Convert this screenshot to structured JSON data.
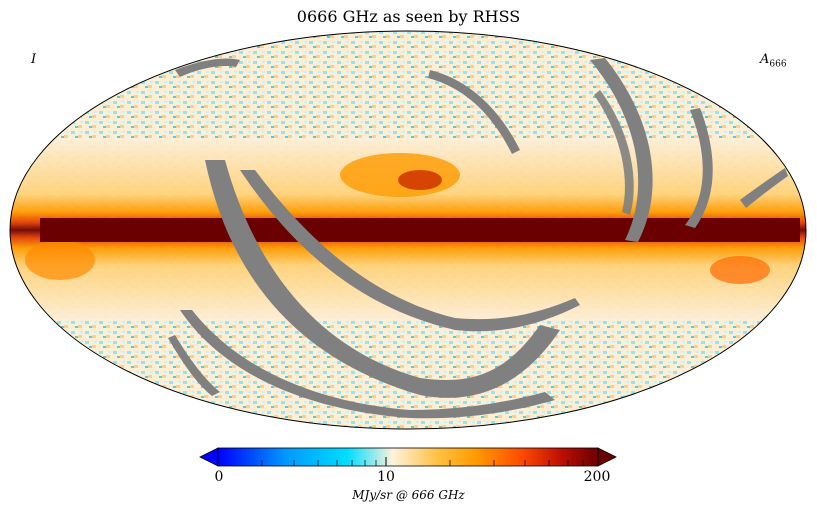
{
  "title": "0666 GHz as seen by RHSS",
  "stokes_label": "I",
  "component_label": {
    "base": "A",
    "subscript": "666"
  },
  "colorbar": {
    "min": 0,
    "max": 200,
    "tick_labels": [
      "0",
      "10",
      "200"
    ],
    "unit_label": "MJy/sr @ 666 GHz",
    "scale": "log-like",
    "colors": [
      "#0000ff",
      "#0099ff",
      "#00ddff",
      "#fdf2dc",
      "#ffc040",
      "#ff9a00",
      "#ff4a00",
      "#c01000",
      "#6b0000"
    ]
  },
  "map_colors": {
    "masked": "#808080",
    "galactic_plane_core": "#6b0000",
    "galactic_plane_edge": "#ff5a00",
    "high_latitude": "#fdeed6"
  }
}
